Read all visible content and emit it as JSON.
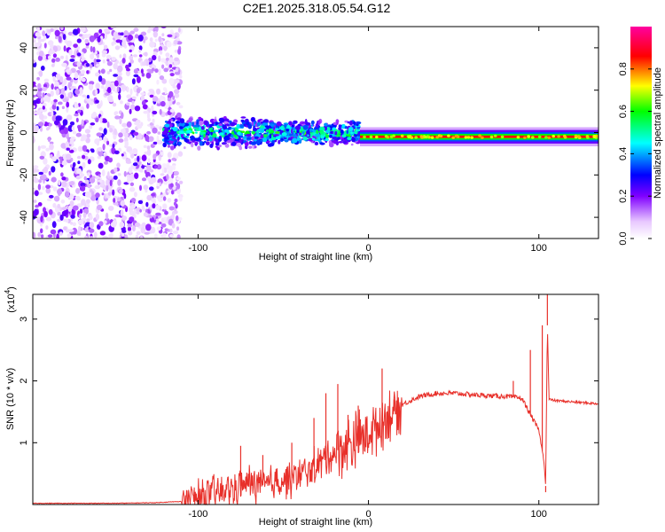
{
  "title": "C2E1.2025.318.05.54.G12",
  "chart_data": [
    {
      "type": "heatmap",
      "name": "spectrogram",
      "xlabel": "Height of straight line (km)",
      "ylabel": "Frequency (Hz)",
      "xlim": [
        -197,
        135
      ],
      "ylim": [
        -50,
        50
      ],
      "x_ticks": [
        -100,
        0,
        100
      ],
      "x_tick_labels": [
        "-100",
        "0",
        "100"
      ],
      "y_ticks": [
        -40,
        -20,
        0,
        20,
        40
      ],
      "y_tick_labels": [
        "-40",
        "-20",
        "0",
        "20",
        "40"
      ],
      "colorbar": {
        "label": "Normalized spectral amplitude",
        "range": [
          0,
          1
        ],
        "ticks": [
          0.0,
          0.2,
          0.4,
          0.6,
          0.8
        ],
        "tick_labels": [
          "0.0",
          "0.2",
          "0.4",
          "0.6",
          "0.8"
        ],
        "stops": [
          {
            "v": 0.0,
            "color": "#ffffff"
          },
          {
            "v": 0.08,
            "color": "#e8c8ff"
          },
          {
            "v": 0.2,
            "color": "#8000ff"
          },
          {
            "v": 0.3,
            "color": "#0000ff"
          },
          {
            "v": 0.45,
            "color": "#00ffff"
          },
          {
            "v": 0.6,
            "color": "#00ff00"
          },
          {
            "v": 0.72,
            "color": "#ffff00"
          },
          {
            "v": 0.86,
            "color": "#ff0000"
          },
          {
            "v": 1.0,
            "color": "#ff00a0"
          }
        ]
      },
      "regions": [
        {
          "kind": "noise",
          "x_range": [
            -197,
            -110
          ],
          "f_range": [
            -50,
            50
          ]
        },
        {
          "kind": "band",
          "x_range": [
            -120,
            -5
          ],
          "f_center": 0,
          "f_halfwidth": 5
        },
        {
          "kind": "line",
          "x_range": [
            -5,
            135
          ],
          "f_center": -2,
          "f_halfwidth": 1.5
        }
      ]
    },
    {
      "type": "line",
      "name": "snr",
      "xlabel": "Height of straight line (km)",
      "ylabel": "SNR (10 * v/v)",
      "y_multiplier": "(x10^4)",
      "y_multiplier_base": "(x10",
      "y_multiplier_exp": "4",
      "y_multiplier_close": ")",
      "xlim": [
        -197,
        135
      ],
      "ylim": [
        0,
        3.4
      ],
      "x_ticks": [
        -100,
        0,
        100
      ],
      "x_tick_labels": [
        "-100",
        "0",
        "100"
      ],
      "y_ticks": [
        1,
        2,
        3
      ],
      "y_tick_labels": [
        "1",
        "2",
        "3"
      ],
      "color": "#e8302a",
      "series": [
        {
          "name": "SNR",
          "x": [
            -197,
            -150,
            -125,
            -110,
            -100,
            -90,
            -80,
            -70,
            -60,
            -50,
            -40,
            -30,
            -20,
            -10,
            0,
            10,
            20,
            30,
            40,
            50,
            60,
            70,
            80,
            90,
            100,
            103,
            104,
            105,
            106,
            110,
            120,
            135
          ],
          "values": [
            0.02,
            0.02,
            0.03,
            0.05,
            0.1,
            0.18,
            0.25,
            0.35,
            0.3,
            0.4,
            0.45,
            0.65,
            0.85,
            1.0,
            1.15,
            1.4,
            1.62,
            1.75,
            1.8,
            1.8,
            1.78,
            1.76,
            1.75,
            1.72,
            1.2,
            0.7,
            0.3,
            2.9,
            1.7,
            1.68,
            1.66,
            1.63
          ]
        }
      ],
      "spikes": [
        {
          "x": -75,
          "y": 0.95
        },
        {
          "x": -62,
          "y": 0.8
        },
        {
          "x": -45,
          "y": 1.0
        },
        {
          "x": -32,
          "y": 1.4
        },
        {
          "x": -25,
          "y": 1.8
        },
        {
          "x": -18,
          "y": 1.95
        },
        {
          "x": -12,
          "y": 1.45
        },
        {
          "x": -6,
          "y": 1.6
        },
        {
          "x": 8,
          "y": 2.2
        },
        {
          "x": 15,
          "y": 1.7
        },
        {
          "x": 85,
          "y": 2.0
        },
        {
          "x": 95,
          "y": 2.5
        },
        {
          "x": 102,
          "y": 2.9
        },
        {
          "x": 105,
          "y": 3.4
        },
        {
          "x": 104,
          "y": 0.2
        }
      ]
    }
  ]
}
